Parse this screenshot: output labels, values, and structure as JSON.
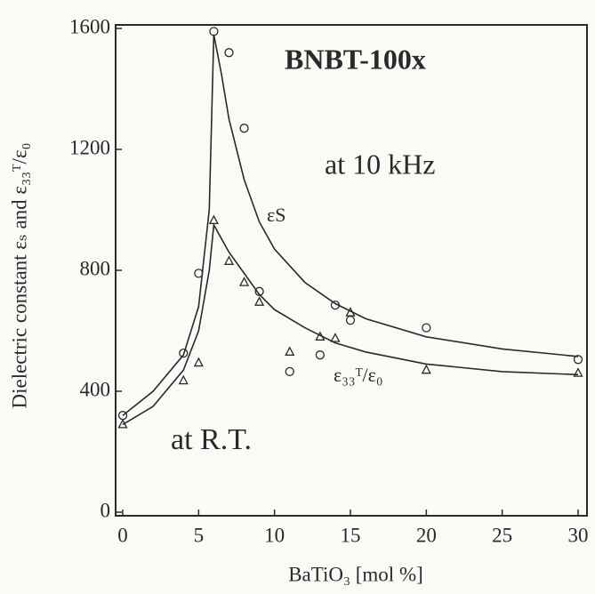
{
  "chart_data": {
    "type": "scatter",
    "xlabel": "BaTiO₃ [mol %]",
    "ylabel": "Dielectric constant εₛ and ε₃₃ᵀ/ε₀",
    "annotations": [
      "BNBT-100x",
      "at 10 kHz",
      "at R.T."
    ],
    "xlim": [
      0,
      30
    ],
    "xticks": [
      0,
      5,
      10,
      15,
      20,
      25,
      30
    ],
    "ylim": [
      0,
      1600
    ],
    "yticks": [
      0,
      400,
      800,
      1200,
      1600
    ],
    "color": "#2a2a2a",
    "series": [
      {
        "marker": "circle",
        "x": [
          0,
          4,
          5,
          6,
          7,
          8,
          9,
          11,
          13,
          14,
          15,
          20,
          30
        ],
        "values": [
          320,
          526,
          790,
          1590,
          1520,
          1270,
          730,
          465,
          520,
          685,
          635,
          610,
          505
        ]
      },
      {
        "marker": "triangle",
        "x": [
          0,
          4,
          5,
          6,
          7,
          8,
          9,
          11,
          13,
          14,
          15,
          20,
          30
        ],
        "values": [
          290,
          435,
          494,
          965,
          830,
          760,
          695,
          530,
          580,
          575,
          660,
          470,
          460
        ]
      },
      {
        "marker": "line",
        "name": "εS",
        "x": [
          0,
          2,
          4,
          5,
          5.7,
          6,
          6.5,
          7,
          8,
          9,
          10,
          12,
          14,
          16,
          20,
          25,
          30
        ],
        "values": [
          320,
          400,
          520,
          680,
          1000,
          1580,
          1450,
          1300,
          1100,
          960,
          870,
          760,
          690,
          640,
          580,
          540,
          515
        ]
      },
      {
        "marker": "line",
        "name": "ε₃₃ᵀ/ε₀",
        "x": [
          0,
          2,
          4,
          5,
          5.7,
          6,
          7,
          8,
          9,
          10,
          12,
          14,
          16,
          20,
          25,
          30
        ],
        "values": [
          290,
          350,
          470,
          600,
          800,
          950,
          860,
          790,
          720,
          670,
          610,
          560,
          530,
          490,
          465,
          455
        ]
      }
    ]
  }
}
